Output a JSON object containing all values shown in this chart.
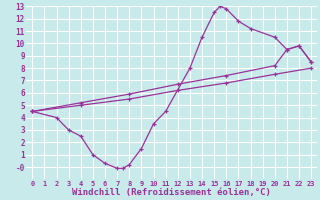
{
  "xlabel": "Windchill (Refroidissement éolien,°C)",
  "bg_color": "#c8eaea",
  "grid_color": "#ffffff",
  "line_color": "#993399",
  "xlim": [
    -0.5,
    23.5
  ],
  "ylim": [
    -1,
    13
  ],
  "xticks": [
    0,
    1,
    2,
    3,
    4,
    5,
    6,
    7,
    8,
    9,
    10,
    11,
    12,
    13,
    14,
    15,
    16,
    17,
    18,
    19,
    20,
    21,
    22,
    23
  ],
  "yticks": [
    0,
    1,
    2,
    3,
    4,
    5,
    6,
    7,
    8,
    9,
    10,
    11,
    12,
    13
  ],
  "curve_x": [
    0,
    2,
    3,
    4,
    5,
    6,
    7,
    7.5,
    8,
    9,
    10,
    11,
    13,
    14,
    15,
    15.5,
    16,
    17,
    18,
    20,
    21,
    22,
    23
  ],
  "curve_y": [
    4.5,
    4.0,
    3.0,
    2.5,
    1.0,
    0.3,
    -0.1,
    -0.1,
    0.2,
    1.5,
    3.5,
    4.5,
    8.0,
    10.5,
    12.5,
    13.0,
    12.8,
    11.8,
    11.2,
    10.5,
    9.5,
    9.8,
    8.5
  ],
  "diag1_x": [
    0,
    4,
    8,
    12,
    16,
    20,
    21,
    22,
    23
  ],
  "diag1_y": [
    4.5,
    5.2,
    5.9,
    6.7,
    7.4,
    8.2,
    9.5,
    9.8,
    8.5
  ],
  "diag2_x": [
    0,
    4,
    8,
    12,
    16,
    20,
    23
  ],
  "diag2_y": [
    4.5,
    5.0,
    5.5,
    6.2,
    6.8,
    7.5,
    8.0
  ],
  "font_size_label": 6.5,
  "tick_fontsize": 5.0
}
